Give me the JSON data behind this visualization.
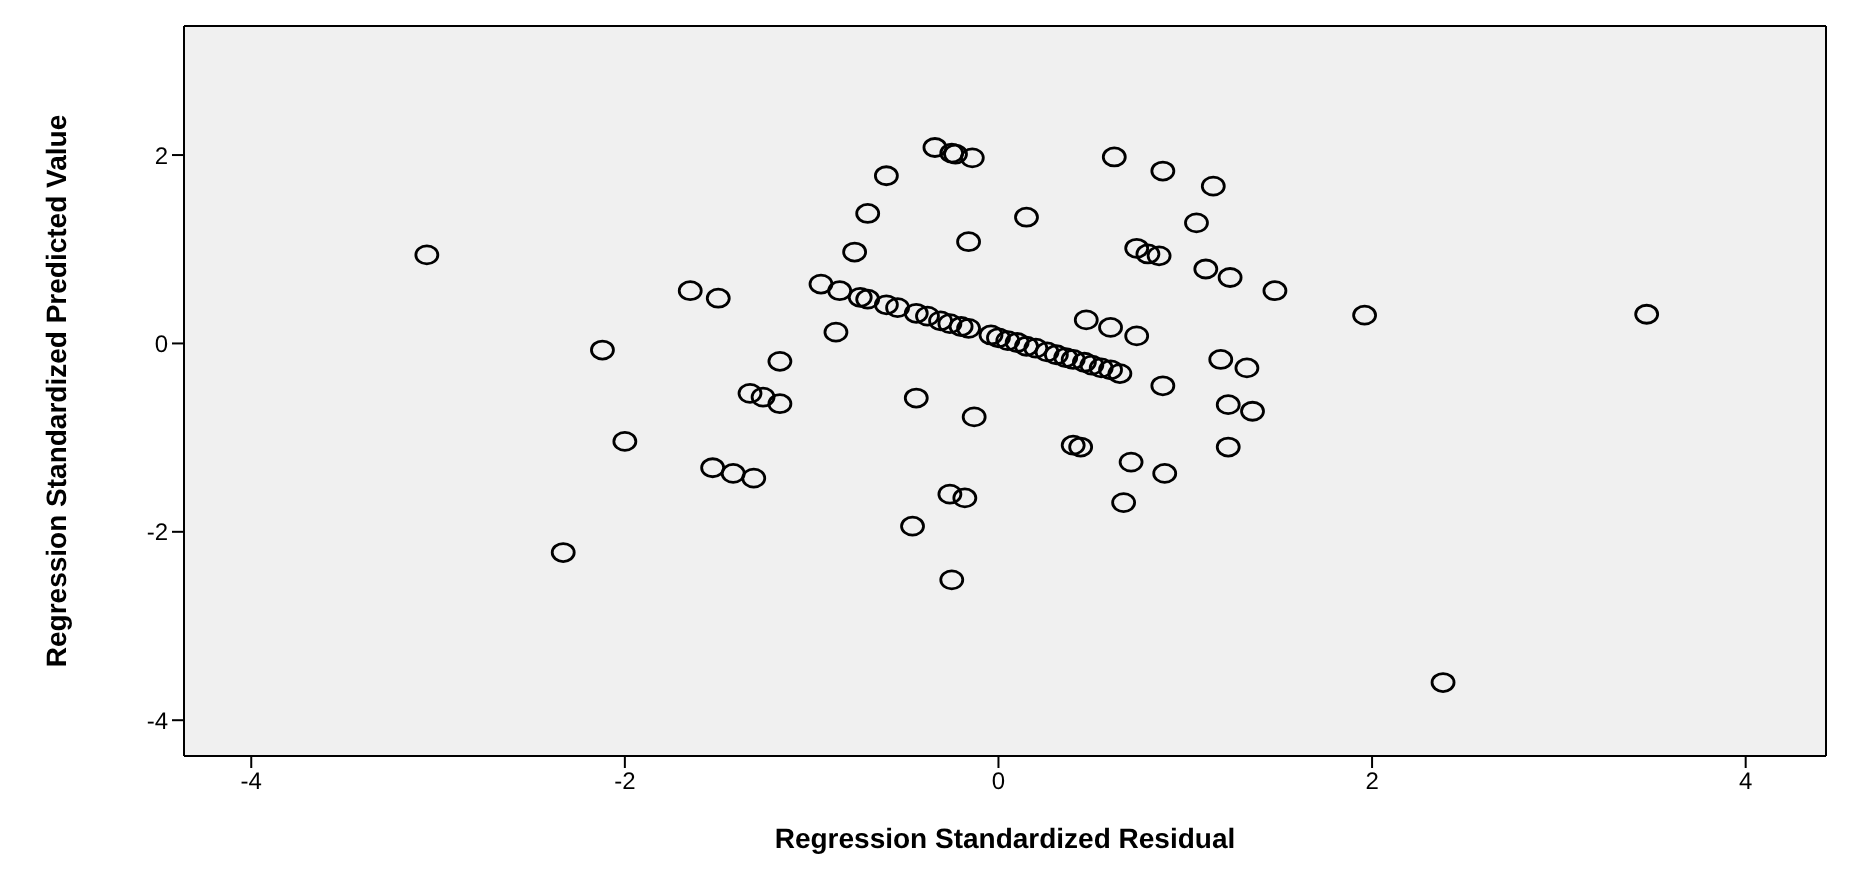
{
  "chart_data": {
    "type": "scatter",
    "xlabel": "Regression Standardized Residual",
    "ylabel": "Regression Standardized Predicted Value",
    "xlim": [
      -4.36,
      4.43
    ],
    "ylim": [
      -4.38,
      3.37
    ],
    "xticks": [
      -4,
      -2,
      0,
      2,
      4
    ],
    "yticks": [
      -4,
      -2,
      0,
      2
    ],
    "grid": false,
    "marker": "circle",
    "series": [
      {
        "color": "#000000",
        "x": [
          -3.06,
          -1.65,
          -1.5,
          -2.12,
          -1.33,
          -1.26,
          -1.17,
          -1.17,
          -2.0,
          -1.53,
          -1.42,
          -1.31,
          -2.33,
          -0.34,
          -0.25,
          -0.23,
          -0.14,
          -0.6,
          -0.7,
          0.15,
          -0.16,
          -0.77,
          0.62,
          0.88,
          1.15,
          1.06,
          0.74,
          0.8,
          0.86,
          1.11,
          1.24,
          1.48,
          1.96,
          0.47,
          0.6,
          0.74,
          -0.95,
          -0.85,
          -0.87,
          -0.74,
          -0.7,
          -0.6,
          -0.54,
          -0.44,
          -0.38,
          -0.31,
          -0.26,
          -0.2,
          -0.16,
          -0.04,
          0.0,
          0.05,
          0.1,
          0.15,
          0.2,
          0.26,
          0.31,
          0.36,
          0.4,
          0.46,
          0.5,
          0.55,
          0.6,
          0.65,
          -0.44,
          -0.13,
          0.88,
          1.19,
          1.33,
          1.23,
          1.36,
          1.23,
          0.4,
          0.44,
          0.71,
          0.89,
          0.67,
          -0.26,
          -0.18,
          -0.46,
          -0.25,
          3.47,
          2.38
        ],
        "values": [
          0.94,
          0.56,
          0.48,
          -0.07,
          -0.53,
          -0.57,
          -0.19,
          -0.64,
          -1.04,
          -1.32,
          -1.38,
          -1.43,
          -2.22,
          2.08,
          2.02,
          2.01,
          1.97,
          1.78,
          1.38,
          1.34,
          1.08,
          0.97,
          1.98,
          1.83,
          1.67,
          1.28,
          1.01,
          0.95,
          0.93,
          0.79,
          0.7,
          0.56,
          0.3,
          0.25,
          0.17,
          0.08,
          0.63,
          0.56,
          0.12,
          0.49,
          0.47,
          0.41,
          0.38,
          0.32,
          0.29,
          0.24,
          0.21,
          0.18,
          0.16,
          0.09,
          0.06,
          0.03,
          0.01,
          -0.03,
          -0.05,
          -0.09,
          -0.12,
          -0.15,
          -0.17,
          -0.2,
          -0.23,
          -0.26,
          -0.28,
          -0.32,
          -0.58,
          -0.78,
          -0.45,
          -0.17,
          -0.26,
          -0.65,
          -0.72,
          -1.1,
          -1.08,
          -1.1,
          -1.26,
          -1.38,
          -1.69,
          -1.6,
          -1.64,
          -1.94,
          -2.51,
          0.31,
          -3.6
        ]
      }
    ]
  }
}
